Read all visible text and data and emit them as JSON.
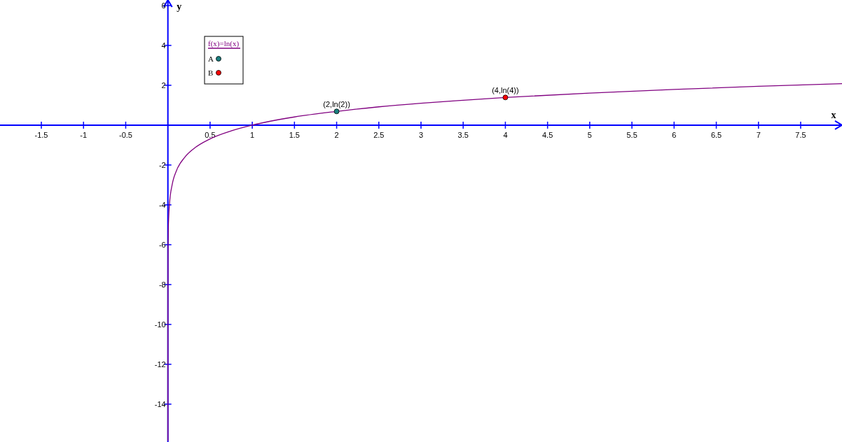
{
  "chart_data": {
    "type": "line",
    "xlabel": "x",
    "ylabel": "y",
    "xlim": [
      -1.99,
      7.99
    ],
    "ylim": [
      -15.9,
      6.28
    ],
    "xticks": [
      -1.5,
      -1,
      -0.5,
      0.5,
      1,
      1.5,
      2,
      2.5,
      3,
      3.5,
      4,
      4.5,
      5,
      5.5,
      6,
      6.5,
      7,
      7.5
    ],
    "yticks": [
      -14,
      -12,
      -10,
      -8,
      -6,
      -4,
      -2,
      2,
      4,
      6
    ],
    "grid": false,
    "legend": "top left",
    "marker": "none",
    "line_style": "solid",
    "series": [
      {
        "name": "f(x)=ln(x)",
        "type": "line",
        "color": "#800080",
        "x": [
          1.3e-07,
          1e-06,
          1e-05,
          0.0001,
          0.001,
          0.005,
          0.01,
          0.02,
          0.05,
          0.1,
          0.2,
          0.3,
          0.5,
          0.75,
          1,
          1.5,
          2,
          2.5,
          3,
          3.5,
          4,
          5,
          6,
          7,
          7.99
        ],
        "values": [
          -15.85,
          -13.8,
          -11.5,
          -9.2,
          -6.9,
          -5.3,
          -4.6,
          -3.91,
          -3.0,
          -2.3,
          -1.61,
          -1.2,
          -0.69,
          -0.29,
          0,
          0.41,
          0.69,
          0.92,
          1.1,
          1.25,
          1.39,
          1.61,
          1.79,
          1.95,
          2.08
        ]
      },
      {
        "name": "A",
        "type": "scatter",
        "marker": "circle",
        "color": "#1a7f7f",
        "x": [
          2
        ],
        "values": [
          0.69
        ]
      },
      {
        "name": "B",
        "type": "scatter",
        "marker": "circle",
        "color": "#ff0000",
        "x": [
          4
        ],
        "values": [
          1.39
        ]
      }
    ],
    "annotations": [
      {
        "text": "(2,ln(2))",
        "x": 2,
        "y": 0.69
      },
      {
        "text": "(4,ln(4))",
        "x": 4,
        "y": 1.39
      }
    ]
  }
}
